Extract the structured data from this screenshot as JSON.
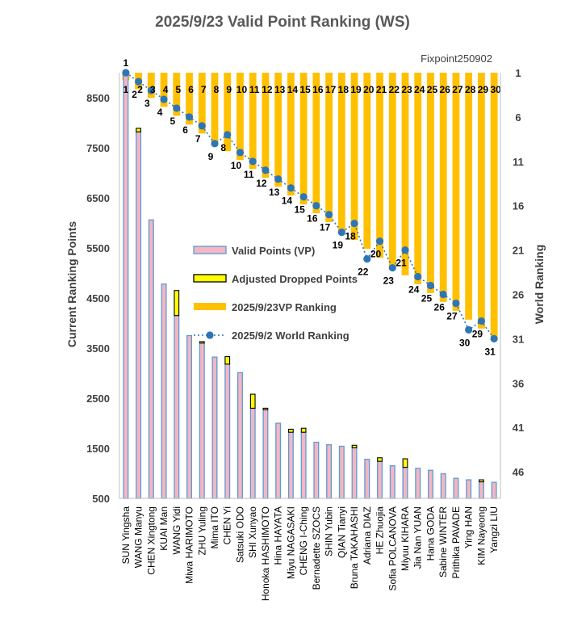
{
  "chart_data": {
    "type": "bar",
    "title": "2025/9/23  Valid Point Ranking (WS)",
    "subtitle": "Fixpoint250902",
    "ylabel": "Current Ranking Points",
    "y2label": "World Ranking",
    "ylim": [
      500,
      9000
    ],
    "y_ticks": [
      500,
      1500,
      2500,
      3500,
      4500,
      5500,
      6500,
      7500,
      8500
    ],
    "y_tick_labels": [
      "500",
      "1500",
      "2500",
      "3500",
      "4500",
      "5500",
      "6500",
      "7500",
      "8500"
    ],
    "y2lim": [
      1,
      49
    ],
    "y2_ticks": [
      1,
      6,
      11,
      16,
      21,
      26,
      31,
      36,
      41,
      46
    ],
    "y2_tick_labels": [
      "1",
      "6",
      "11",
      "16",
      "21",
      "26",
      "31",
      "36",
      "41",
      "46"
    ],
    "categories": [
      "SUN Yingsha",
      "WANG Manyu",
      "CHEN Xingtong",
      "KUAI Man",
      "WANG Yidi",
      "Miwa HARIMOTO",
      "ZHU Yuling",
      "Mima ITO",
      "CHEN Yi",
      "Satsuki ODO",
      "SHI Xunyao",
      "Honoka HASHIMOTO",
      "Hina HAYATA",
      "Miyu NAGASAKI",
      "CHENG I-Ching",
      "Bernadette SZOCS",
      "SHIN Yubin",
      "QIAN Tianyi",
      "Bruna TAKAHASHI",
      "Adriana DIAZ",
      "HE Zhuojia",
      "Sofia POLCANOVA",
      "Miyuu KIHARA",
      "Jia Nan YUAN",
      "Hana GODA",
      "Sabine WINTER",
      "Prithika PAVADE",
      "Ying HAN",
      "KIM Nayeong",
      "Yangzi LIU"
    ],
    "series": [
      {
        "name": "Valid Points (VP)",
        "type": "bar",
        "color": "#f4b6c2",
        "edge_color": "#5b9bd5",
        "values": [
          9000,
          7820,
          6060,
          4780,
          4150,
          3750,
          3600,
          3320,
          3180,
          3010,
          2300,
          2270,
          2000,
          1820,
          1820,
          1620,
          1570,
          1540,
          1510,
          1280,
          1240,
          1150,
          1120,
          1100,
          1060,
          990,
          900,
          870,
          830,
          820
        ]
      },
      {
        "name": "Adjusted Dropped Points",
        "type": "bar_stacked",
        "color": "#ffff00",
        "edge_color": "#000000",
        "values": [
          0,
          70,
          0,
          0,
          500,
          0,
          30,
          0,
          150,
          0,
          280,
          30,
          0,
          60,
          80,
          0,
          0,
          0,
          50,
          0,
          70,
          0,
          170,
          0,
          0,
          0,
          0,
          0,
          40,
          0
        ]
      },
      {
        "name": "2025/9/23VP Ranking",
        "type": "bar_secondary_axis",
        "color": "#ffc000",
        "values": [
          1,
          2,
          3,
          4,
          5,
          6,
          7,
          8,
          9,
          10,
          11,
          12,
          13,
          14,
          15,
          16,
          17,
          18,
          19,
          20,
          21,
          22,
          23,
          24,
          25,
          26,
          27,
          28,
          29,
          30
        ]
      },
      {
        "name": "2025/9/2 World Ranking",
        "type": "line_secondary_axis",
        "color": "#2e75b6",
        "values": [
          1,
          2,
          3,
          4,
          5,
          6,
          7,
          9,
          8,
          10,
          11,
          12,
          13,
          14,
          15,
          16,
          17,
          19,
          18,
          22,
          20,
          23,
          21,
          24,
          25,
          26,
          27,
          30,
          29,
          31
        ]
      }
    ],
    "legend": [
      "Valid Points (VP)",
      "Adjusted Dropped Points",
      "2025/9/23VP Ranking",
      "2025/9/2 World Ranking"
    ],
    "legend_position": "center",
    "grid": false
  }
}
